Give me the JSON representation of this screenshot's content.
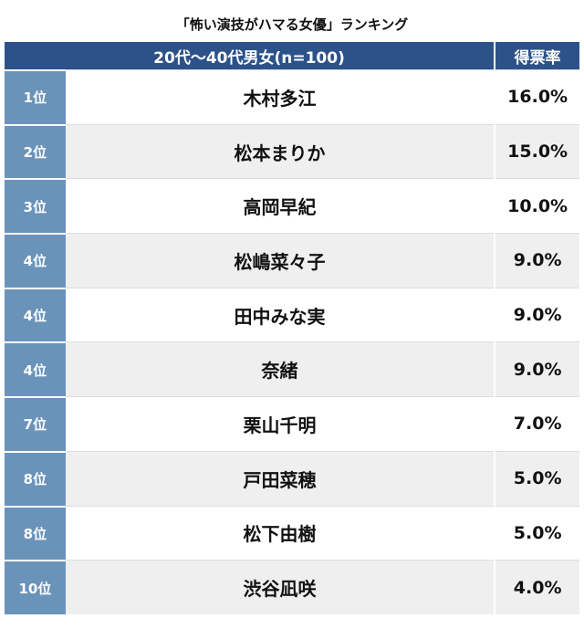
{
  "title": "「怖い演技がハマる女優」ランキング",
  "table": {
    "header": [
      "20代〜40代男女(n=100)",
      "得票率"
    ],
    "rows": [
      [
        "1位",
        "木村多江",
        "16.0%"
      ],
      [
        "2位",
        "松本まりか",
        "15.0%"
      ],
      [
        "3位",
        "高岡早紀",
        "10.0%"
      ],
      [
        "4位",
        "松嶋菜々子",
        "9.0%"
      ],
      [
        "4位",
        "田中みな実",
        "9.0%"
      ],
      [
        "4位",
        "奈緒",
        "9.0%"
      ],
      [
        "7位",
        "栗山千明",
        "7.0%"
      ],
      [
        "8位",
        "戸田菜穂",
        "5.0%"
      ],
      [
        "8位",
        "松下由樹",
        "5.0%"
      ],
      [
        "10位",
        "渋谷凪咲",
        "4.0%"
      ]
    ]
  }
}
